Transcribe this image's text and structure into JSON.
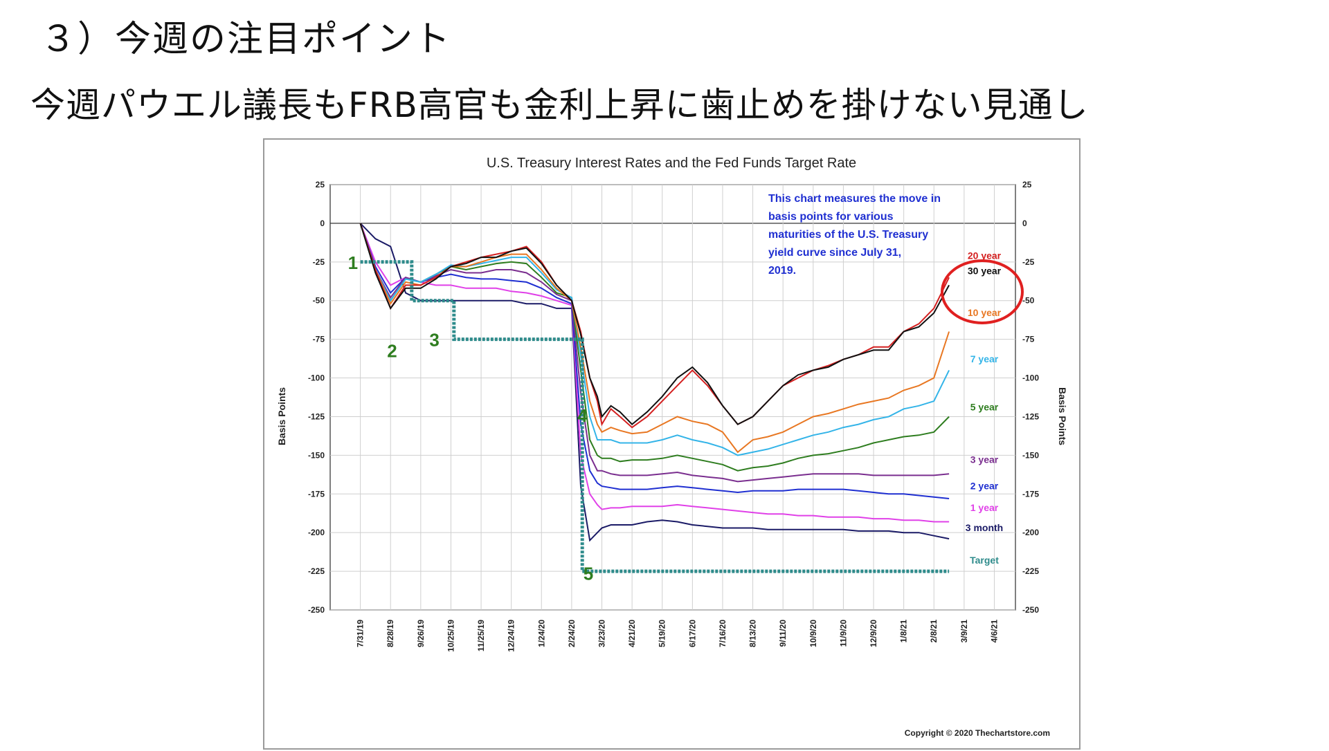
{
  "slide": {
    "title": "３）今週の注目ポイント",
    "subtitle": "今週パウエル議長もFRB高官も金利上昇に歯止めを掛けない見通し"
  },
  "chart_data": {
    "type": "line",
    "title": "U.S. Treasury Interest Rates and the Fed Funds Target Rate",
    "ylabel_left": "Basis Points",
    "ylabel_right": "Basis Points",
    "ylim": [
      -250,
      25
    ],
    "yticks": [
      25,
      0,
      -25,
      -50,
      -75,
      -100,
      -125,
      -150,
      -175,
      -200,
      -225,
      -250
    ],
    "xticks": [
      "7/31/19",
      "8/28/19",
      "9/26/19",
      "10/25/19",
      "11/25/19",
      "12/24/19",
      "1/24/20",
      "2/24/20",
      "3/23/20",
      "4/21/20",
      "5/19/20",
      "6/17/20",
      "7/16/20",
      "8/13/20",
      "9/11/20",
      "10/9/20",
      "11/9/20",
      "12/9/20",
      "1/8/21",
      "2/8/21",
      "3/9/21",
      "4/6/21"
    ],
    "x_index_range": [
      0,
      21
    ],
    "grid": true,
    "note": "This chart measures the move in basis points for various maturities of the U.S. Treasury yield curve since July 31, 2019.",
    "copyright": "Copyright © 2020 Thechartstore.com",
    "callouts": [
      "1",
      "2",
      "3",
      "4",
      "5"
    ],
    "series": [
      {
        "name": "20 year",
        "color": "#d42020",
        "x": [
          0,
          0.5,
          1,
          1.5,
          2,
          2.5,
          3,
          3.5,
          4,
          4.5,
          5,
          5.5,
          6,
          6.5,
          7,
          7.3,
          7.6,
          7.85,
          8,
          8.3,
          8.6,
          9,
          9.5,
          10,
          10.5,
          11,
          11.5,
          12,
          12.5,
          13,
          13.5,
          14,
          14.5,
          15,
          15.5,
          16,
          16.5,
          17,
          17.5,
          18,
          18.5,
          19,
          19.5
        ],
        "y": [
          0,
          -30,
          -55,
          -40,
          -40,
          -35,
          -28,
          -25,
          -22,
          -20,
          -18,
          -15,
          -25,
          -40,
          -50,
          -70,
          -100,
          -115,
          -130,
          -120,
          -125,
          -132,
          -125,
          -115,
          -105,
          -95,
          -105,
          -118,
          -130,
          -125,
          -115,
          -105,
          -100,
          -95,
          -92,
          -88,
          -85,
          -80,
          -80,
          -70,
          -65,
          -55,
          -35
        ]
      },
      {
        "name": "30 year",
        "color": "#111111",
        "x": [
          0,
          0.5,
          1,
          1.5,
          2,
          2.5,
          3,
          3.5,
          4,
          4.5,
          5,
          5.5,
          6,
          6.5,
          7,
          7.3,
          7.6,
          7.85,
          8,
          8.3,
          8.6,
          9,
          9.5,
          10,
          10.5,
          11,
          11.5,
          12,
          12.5,
          13,
          13.5,
          14,
          14.5,
          15,
          15.5,
          16,
          16.5,
          17,
          17.5,
          18,
          18.5,
          19,
          19.5
        ],
        "y": [
          0,
          -32,
          -55,
          -42,
          -42,
          -36,
          -28,
          -26,
          -22,
          -22,
          -18,
          -16,
          -26,
          -40,
          -50,
          -72,
          -100,
          -112,
          -125,
          -118,
          -122,
          -130,
          -122,
          -112,
          -100,
          -93,
          -103,
          -118,
          -130,
          -125,
          -115,
          -105,
          -98,
          -95,
          -93,
          -88,
          -85,
          -82,
          -82,
          -70,
          -67,
          -58,
          -40
        ]
      },
      {
        "name": "10 year",
        "color": "#e87722",
        "x": [
          0,
          0.5,
          1,
          1.5,
          2,
          2.5,
          3,
          3.5,
          4,
          4.5,
          5,
          5.5,
          6,
          6.5,
          7,
          7.3,
          7.6,
          7.85,
          8,
          8.3,
          8.6,
          9,
          9.5,
          10,
          10.5,
          11,
          11.5,
          12,
          12.5,
          13,
          13.5,
          14,
          14.5,
          15,
          15.5,
          16,
          16.5,
          17,
          17.5,
          18,
          18.5,
          19,
          19.5
        ],
        "y": [
          0,
          -30,
          -52,
          -38,
          -40,
          -35,
          -28,
          -28,
          -25,
          -22,
          -20,
          -20,
          -30,
          -42,
          -50,
          -80,
          -115,
          -130,
          -135,
          -132,
          -134,
          -136,
          -135,
          -130,
          -125,
          -128,
          -130,
          -135,
          -148,
          -140,
          -138,
          -135,
          -130,
          -125,
          -123,
          -120,
          -117,
          -115,
          -113,
          -108,
          -105,
          -100,
          -70
        ]
      },
      {
        "name": "7 year",
        "color": "#33b4e8",
        "x": [
          0,
          0.5,
          1,
          1.5,
          2,
          2.5,
          3,
          3.5,
          4,
          4.5,
          5,
          5.5,
          6,
          6.5,
          7,
          7.3,
          7.6,
          7.85,
          8,
          8.3,
          8.6,
          9,
          9.5,
          10,
          10.5,
          11,
          11.5,
          12,
          12.5,
          13,
          13.5,
          14,
          14.5,
          15,
          15.5,
          16,
          16.5,
          17,
          17.5,
          18,
          18.5,
          19,
          19.5
        ],
        "y": [
          0,
          -30,
          -50,
          -36,
          -38,
          -33,
          -27,
          -28,
          -26,
          -24,
          -22,
          -22,
          -32,
          -43,
          -48,
          -85,
          -125,
          -140,
          -140,
          -140,
          -142,
          -142,
          -142,
          -140,
          -137,
          -140,
          -142,
          -145,
          -150,
          -148,
          -146,
          -143,
          -140,
          -137,
          -135,
          -132,
          -130,
          -127,
          -125,
          -120,
          -118,
          -115,
          -95
        ]
      },
      {
        "name": "5 year",
        "color": "#2e7d1f",
        "x": [
          0,
          0.5,
          1,
          1.5,
          2,
          2.5,
          3,
          3.5,
          4,
          4.5,
          5,
          5.5,
          6,
          6.5,
          7,
          7.3,
          7.6,
          7.85,
          8,
          8.3,
          8.6,
          9,
          9.5,
          10,
          10.5,
          11,
          11.5,
          12,
          12.5,
          13,
          13.5,
          14,
          14.5,
          15,
          15.5,
          16,
          16.5,
          17,
          17.5,
          18,
          18.5,
          19,
          19.5
        ],
        "y": [
          0,
          -30,
          -50,
          -36,
          -38,
          -33,
          -28,
          -30,
          -28,
          -26,
          -25,
          -26,
          -35,
          -45,
          -48,
          -95,
          -140,
          -150,
          -152,
          -152,
          -154,
          -153,
          -153,
          -152,
          -150,
          -152,
          -154,
          -156,
          -160,
          -158,
          -157,
          -155,
          -152,
          -150,
          -149,
          -147,
          -145,
          -142,
          -140,
          -138,
          -137,
          -135,
          -125
        ]
      },
      {
        "name": "3 year",
        "color": "#7a2e8f",
        "x": [
          0,
          0.5,
          1,
          1.5,
          2,
          2.5,
          3,
          3.5,
          4,
          4.5,
          5,
          5.5,
          6,
          6.5,
          7,
          7.3,
          7.6,
          7.85,
          8,
          8.3,
          8.6,
          9,
          9.5,
          10,
          10.5,
          11,
          11.5,
          12,
          12.5,
          13,
          13.5,
          14,
          14.5,
          15,
          15.5,
          16,
          16.5,
          17,
          17.5,
          18,
          18.5,
          19,
          19.5
        ],
        "y": [
          0,
          -30,
          -48,
          -35,
          -38,
          -34,
          -30,
          -32,
          -32,
          -30,
          -30,
          -32,
          -38,
          -46,
          -50,
          -110,
          -150,
          -160,
          -160,
          -162,
          -163,
          -163,
          -163,
          -162,
          -161,
          -163,
          -164,
          -165,
          -167,
          -166,
          -165,
          -164,
          -163,
          -162,
          -162,
          -162,
          -162,
          -163,
          -163,
          -163,
          -163,
          -163,
          -162
        ]
      },
      {
        "name": "2 year",
        "color": "#1f2fd1",
        "x": [
          0,
          0.5,
          1,
          1.5,
          2,
          2.5,
          3,
          3.5,
          4,
          4.5,
          5,
          5.5,
          6,
          6.5,
          7,
          7.3,
          7.6,
          7.85,
          8,
          8.3,
          8.6,
          9,
          9.5,
          10,
          10.5,
          11,
          11.5,
          12,
          12.5,
          13,
          13.5,
          14,
          14.5,
          15,
          15.5,
          16,
          16.5,
          17,
          17.5,
          18,
          18.5,
          19,
          19.5
        ],
        "y": [
          0,
          -28,
          -45,
          -35,
          -38,
          -35,
          -33,
          -35,
          -36,
          -36,
          -37,
          -38,
          -42,
          -48,
          -52,
          -130,
          -160,
          -168,
          -170,
          -171,
          -172,
          -172,
          -172,
          -171,
          -170,
          -171,
          -172,
          -173,
          -174,
          -173,
          -173,
          -173,
          -172,
          -172,
          -172,
          -172,
          -173,
          -174,
          -175,
          -175,
          -176,
          -177,
          -178
        ]
      },
      {
        "name": "1 year",
        "color": "#e040e8",
        "x": [
          0,
          0.5,
          1,
          1.5,
          2,
          2.5,
          3,
          3.5,
          4,
          4.5,
          5,
          5.5,
          6,
          6.5,
          7,
          7.3,
          7.6,
          7.85,
          8,
          8.3,
          8.6,
          9,
          9.5,
          10,
          10.5,
          11,
          11.5,
          12,
          12.5,
          13,
          13.5,
          14,
          14.5,
          15,
          15.5,
          16,
          16.5,
          17,
          17.5,
          18,
          18.5,
          19,
          19.5
        ],
        "y": [
          0,
          -25,
          -40,
          -35,
          -38,
          -40,
          -40,
          -42,
          -42,
          -42,
          -44,
          -45,
          -47,
          -50,
          -53,
          -150,
          -175,
          -182,
          -185,
          -184,
          -184,
          -183,
          -183,
          -183,
          -182,
          -183,
          -184,
          -185,
          -186,
          -187,
          -188,
          -188,
          -189,
          -189,
          -190,
          -190,
          -190,
          -191,
          -191,
          -192,
          -192,
          -193,
          -193
        ]
      },
      {
        "name": "3 month",
        "color": "#1a1a66",
        "x": [
          0,
          0.5,
          1,
          1.5,
          2,
          2.5,
          3,
          3.5,
          4,
          4.5,
          5,
          5.5,
          6,
          6.5,
          7,
          7.3,
          7.6,
          7.85,
          8,
          8.3,
          8.6,
          9,
          9.5,
          10,
          10.5,
          11,
          11.5,
          12,
          12.5,
          13,
          13.5,
          14,
          14.5,
          15,
          15.5,
          16,
          16.5,
          17,
          17.5,
          18,
          18.5,
          19,
          19.5
        ],
        "y": [
          0,
          -10,
          -15,
          -45,
          -50,
          -50,
          -50,
          -50,
          -50,
          -50,
          -50,
          -52,
          -52,
          -55,
          -55,
          -170,
          -205,
          -200,
          -197,
          -195,
          -195,
          -195,
          -193,
          -192,
          -193,
          -195,
          -196,
          -197,
          -197,
          -197,
          -198,
          -198,
          -198,
          -198,
          -198,
          -198,
          -199,
          -199,
          -199,
          -200,
          -200,
          -202,
          -204
        ]
      },
      {
        "name": "Target",
        "color": "#2e8b8b",
        "x": [
          0,
          1.7,
          1.7,
          3.1,
          3.1,
          7.35,
          7.35,
          8.6,
          19.5
        ],
        "y": [
          -25,
          -25,
          -50,
          -50,
          -75,
          -75,
          -225,
          -225,
          -225
        ]
      }
    ],
    "highlight": "20 year / 30 year"
  }
}
